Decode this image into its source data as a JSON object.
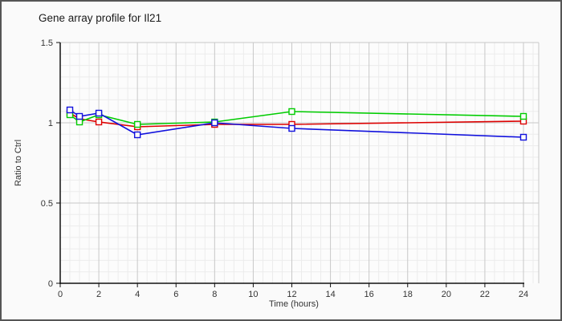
{
  "header": {
    "title": "Gene array profile for Il21"
  },
  "page": {
    "background": "#fafafa",
    "border_color": "#555555",
    "plot_background": "#fcfcfc"
  },
  "chart_data": {
    "type": "line",
    "title": "Gene array profile for Il21",
    "xlabel": "Time (hours)",
    "ylabel": "Ratio to Ctrl",
    "xlim": [
      0,
      24.8
    ],
    "ylim": [
      0,
      1.5
    ],
    "x_ticks": [
      0,
      2,
      4,
      6,
      8,
      10,
      12,
      14,
      16,
      18,
      20,
      22,
      24
    ],
    "y_ticks": [
      0,
      0.5,
      1,
      1.5
    ],
    "y_tick_labels": [
      "0",
      "0.5",
      "1",
      "1.5"
    ],
    "grid": {
      "on": true,
      "minor_color": "#ececec",
      "major_color": "#c8c8c8",
      "minor_x_step_hours": 0.5,
      "minor_y_divisions_per_major": 7
    },
    "legend": "none",
    "marker": "open-square",
    "x": [
      0.5,
      1,
      2,
      4,
      8,
      12,
      24
    ],
    "series": [
      {
        "name": "red",
        "color": "#dd0000",
        "values": [
          1.06,
          1.025,
          1.005,
          0.975,
          0.99,
          0.99,
          1.01
        ]
      },
      {
        "name": "green",
        "color": "#00cc00",
        "values": [
          1.05,
          1.005,
          1.05,
          0.99,
          1.005,
          1.07,
          1.04
        ]
      },
      {
        "name": "blue",
        "color": "#1111dd",
        "values": [
          1.08,
          1.04,
          1.06,
          0.925,
          1.0,
          0.965,
          0.91
        ]
      }
    ]
  }
}
